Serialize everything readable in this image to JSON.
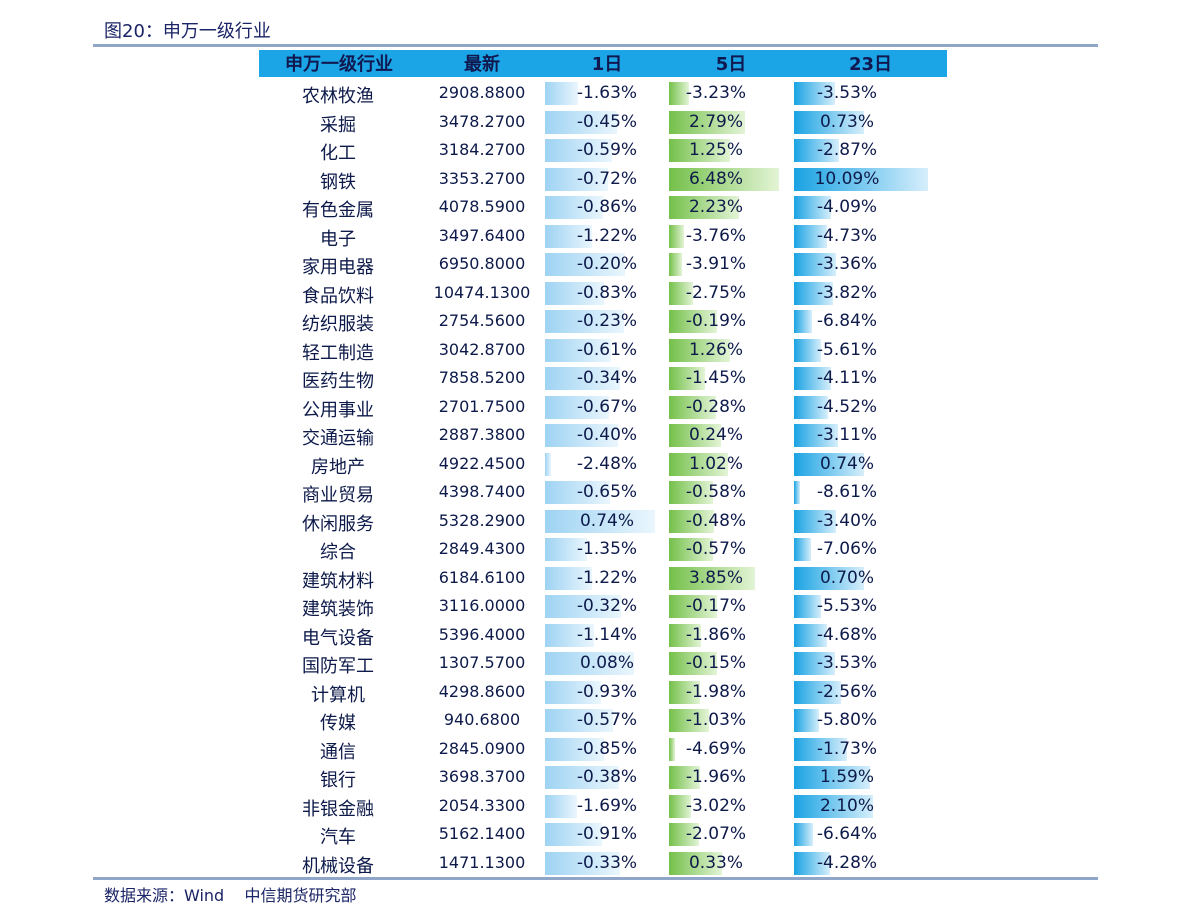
{
  "figure_title": "图20：申万一级行业",
  "source": "数据来源：Wind    中信期货研究部",
  "headers": {
    "industry": "申万一级行业",
    "latest": "最新",
    "d1": "1日",
    "d5": "5日",
    "d23": "23日"
  },
  "colors": {
    "header_bg": "#1ba5e6",
    "bar_1d": "#9ed3f3",
    "bar_5d": "#74c04a",
    "bar_23d": "#1aa3e3",
    "rule": "#8fa6c9"
  },
  "rows": [
    {
      "name": "农林牧渔",
      "latest": "2908.8800",
      "d1": "-1.63%",
      "d5": "-3.23%",
      "d23": "-3.53%"
    },
    {
      "name": "采掘",
      "latest": "3478.2700",
      "d1": "-0.45%",
      "d5": "2.79%",
      "d23": "0.73%"
    },
    {
      "name": "化工",
      "latest": "3184.2700",
      "d1": "-0.59%",
      "d5": "1.25%",
      "d23": "-2.87%"
    },
    {
      "name": "钢铁",
      "latest": "3353.2700",
      "d1": "-0.72%",
      "d5": "6.48%",
      "d23": "10.09%"
    },
    {
      "name": "有色金属",
      "latest": "4078.5900",
      "d1": "-0.86%",
      "d5": "2.23%",
      "d23": "-4.09%"
    },
    {
      "name": "电子",
      "latest": "3497.6400",
      "d1": "-1.22%",
      "d5": "-3.76%",
      "d23": "-4.73%"
    },
    {
      "name": "家用电器",
      "latest": "6950.8000",
      "d1": "-0.20%",
      "d5": "-3.91%",
      "d23": "-3.36%"
    },
    {
      "name": "食品饮料",
      "latest": "10474.1300",
      "d1": "-0.83%",
      "d5": "-2.75%",
      "d23": "-3.82%"
    },
    {
      "name": "纺织服装",
      "latest": "2754.5600",
      "d1": "-0.23%",
      "d5": "-0.19%",
      "d23": "-6.84%"
    },
    {
      "name": "轻工制造",
      "latest": "3042.8700",
      "d1": "-0.61%",
      "d5": "1.26%",
      "d23": "-5.61%"
    },
    {
      "name": "医药生物",
      "latest": "7858.5200",
      "d1": "-0.34%",
      "d5": "-1.45%",
      "d23": "-4.11%"
    },
    {
      "name": "公用事业",
      "latest": "2701.7500",
      "d1": "-0.67%",
      "d5": "-0.28%",
      "d23": "-4.52%"
    },
    {
      "name": "交通运输",
      "latest": "2887.3800",
      "d1": "-0.40%",
      "d5": "0.24%",
      "d23": "-3.11%"
    },
    {
      "name": "房地产",
      "latest": "4922.4500",
      "d1": "-2.48%",
      "d5": "1.02%",
      "d23": "0.74%"
    },
    {
      "name": "商业贸易",
      "latest": "4398.7400",
      "d1": "-0.65%",
      "d5": "-0.58%",
      "d23": "-8.61%"
    },
    {
      "name": "休闲服务",
      "latest": "5328.2900",
      "d1": "0.74%",
      "d5": "-0.48%",
      "d23": "-3.40%"
    },
    {
      "name": "综合",
      "latest": "2849.4300",
      "d1": "-1.35%",
      "d5": "-0.57%",
      "d23": "-7.06%"
    },
    {
      "name": "建筑材料",
      "latest": "6184.6100",
      "d1": "-1.22%",
      "d5": "3.85%",
      "d23": "0.70%"
    },
    {
      "name": "建筑装饰",
      "latest": "3116.0000",
      "d1": "-0.32%",
      "d5": "-0.17%",
      "d23": "-5.53%"
    },
    {
      "name": "电气设备",
      "latest": "5396.4000",
      "d1": "-1.14%",
      "d5": "-1.86%",
      "d23": "-4.68%"
    },
    {
      "name": "国防军工",
      "latest": "1307.5700",
      "d1": "0.08%",
      "d5": "-0.15%",
      "d23": "-3.53%"
    },
    {
      "name": "计算机",
      "latest": "4298.8600",
      "d1": "-0.93%",
      "d5": "-1.98%",
      "d23": "-2.56%"
    },
    {
      "name": "传媒",
      "latest": "940.6800",
      "d1": "-0.57%",
      "d5": "-1.03%",
      "d23": "-5.80%"
    },
    {
      "name": "通信",
      "latest": "2845.0900",
      "d1": "-0.85%",
      "d5": "-4.69%",
      "d23": "-1.73%"
    },
    {
      "name": "银行",
      "latest": "3698.3700",
      "d1": "-0.38%",
      "d5": "-1.96%",
      "d23": "1.59%"
    },
    {
      "name": "非银金融",
      "latest": "2054.3300",
      "d1": "-1.69%",
      "d5": "-3.02%",
      "d23": "2.10%"
    },
    {
      "name": "汽车",
      "latest": "5162.1400",
      "d1": "-0.91%",
      "d5": "-2.07%",
      "d23": "-6.64%"
    },
    {
      "name": "机械设备",
      "latest": "1471.1300",
      "d1": "-0.33%",
      "d5": "0.33%",
      "d23": "-4.28%"
    }
  ]
}
